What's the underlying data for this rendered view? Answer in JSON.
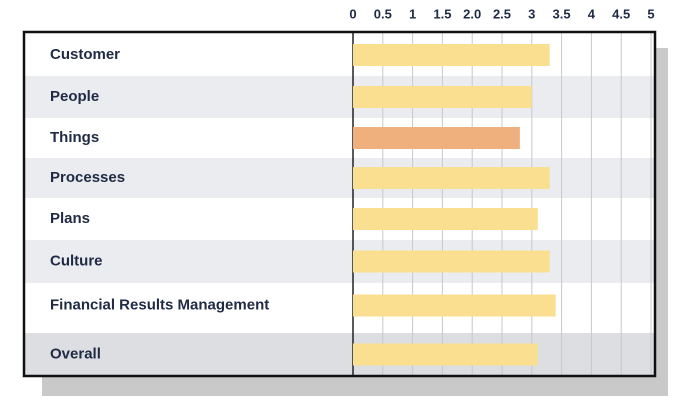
{
  "chart_data": {
    "type": "bar",
    "categories": [
      "Customer",
      "People",
      "Things",
      "Processes",
      "Plans",
      "Culture",
      "Financial Results Management",
      "Overall"
    ],
    "values": [
      3.3,
      3.0,
      2.8,
      3.3,
      3.1,
      3.3,
      3.4,
      3.1
    ],
    "colors": [
      "#f9df8f",
      "#f9df8f",
      "#f0b07e",
      "#f9df8f",
      "#f9df8f",
      "#f9df8f",
      "#f9df8f",
      "#f9df8f"
    ],
    "xlim": [
      0,
      5
    ],
    "xticks": [
      0,
      0.5,
      1,
      1.5,
      {
        "value": 2,
        "label": "2.0"
      },
      2.5,
      3,
      3.5,
      4,
      4.5,
      5
    ],
    "grid": true
  }
}
